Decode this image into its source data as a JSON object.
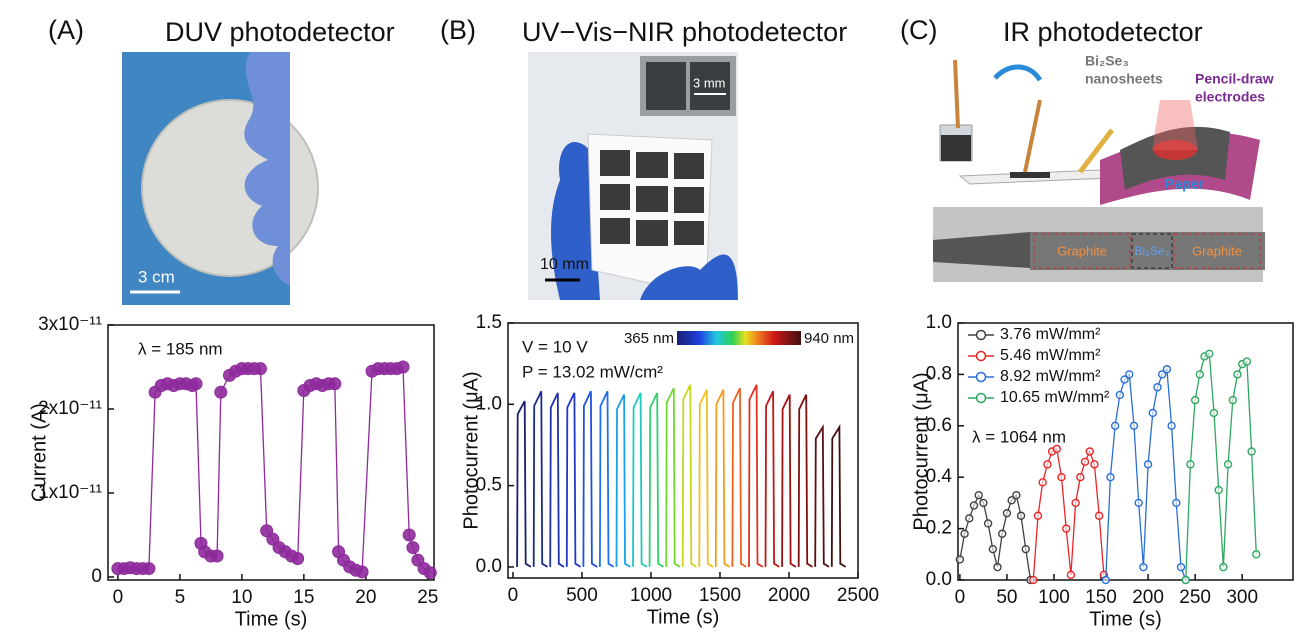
{
  "panels": [
    {
      "label": "(A)",
      "title": "DUV photodetector",
      "photo_texts": [
        "3 cm"
      ]
    },
    {
      "label": "(B)",
      "title": "UV−Vis−NIR photodetector",
      "photo_texts": [
        "10 mm",
        "3 mm"
      ]
    },
    {
      "label": "(C)",
      "title": "IR photodetector",
      "photo_texts": [
        "Bi₂Se₃",
        "nanosheets",
        "Pencil-draw",
        "electrodes",
        "Paper",
        "Graphite",
        "Bi₂Se₃",
        "Graphite"
      ]
    }
  ],
  "chart_data": [
    {
      "type": "line",
      "marker": "filled",
      "x_label": "Time (s)",
      "y_label": "Current (A)",
      "annotations": [
        "λ = 185 nm"
      ],
      "xlim": [
        -0.8,
        25.5
      ],
      "xticks": [
        0,
        5,
        10,
        15,
        20,
        25
      ],
      "ylim": [
        -3.6e-13,
        3e-11
      ],
      "yticks": [
        0,
        {
          "value": 1e-11,
          "label": "1x10⁻¹¹"
        },
        {
          "value": 2e-11,
          "label": "2x10⁻¹¹"
        },
        {
          "value": 3e-11,
          "label": "3x10⁻¹¹"
        }
      ],
      "x": [
        0,
        0.5,
        1,
        1.5,
        2,
        2.5,
        3,
        3.5,
        4,
        4.5,
        5,
        5.5,
        6,
        6.3,
        6.7,
        7,
        7.5,
        8,
        8.3,
        9,
        9.5,
        10,
        10.5,
        11,
        11.5,
        12,
        12.5,
        13,
        13.5,
        14,
        14.5,
        15,
        15.5,
        16,
        16.5,
        17,
        17.5,
        17.8,
        18.2,
        18.7,
        19.2,
        19.7,
        20.5,
        21,
        21.5,
        22,
        22.5,
        23,
        23.5,
        23.8,
        24.2,
        24.7,
        25.2
      ],
      "series": [
        {
          "color": "#8e2a9c",
          "values": [
            1e-12,
            1e-12,
            1.1e-12,
            1e-12,
            1e-12,
            1e-12,
            2.2e-11,
            2.28e-11,
            2.3e-11,
            2.28e-11,
            2.3e-11,
            2.3e-11,
            2.28e-11,
            2.3e-11,
            4e-12,
            3e-12,
            2.5e-12,
            2.5e-12,
            2.2e-11,
            2.4e-11,
            2.45e-11,
            2.48e-11,
            2.48e-11,
            2.48e-11,
            2.48e-11,
            5.5e-12,
            4.5e-12,
            3.5e-12,
            3e-12,
            2.5e-12,
            2.2e-12,
            2.22e-11,
            2.28e-11,
            2.3e-11,
            2.28e-11,
            2.3e-11,
            2.3e-11,
            3e-12,
            2e-12,
            1.2e-12,
            8e-13,
            6e-13,
            2.45e-11,
            2.48e-11,
            2.48e-11,
            2.48e-11,
            2.48e-11,
            2.5e-11,
            5e-12,
            3.5e-12,
            2e-12,
            1e-12,
            5e-13
          ]
        }
      ]
    },
    {
      "type": "line",
      "marker": "none",
      "x_label": "Time (s)",
      "y_label": "Photocurrent (μA)",
      "annotations": [
        "V = 10 V",
        "P = 13.02 mW/cm²"
      ],
      "colorbar_labels": [
        "365 nm",
        "940 nm"
      ],
      "xlim": [
        -36,
        2500
      ],
      "xticks": [
        0,
        500,
        1000,
        1500,
        2000,
        2500
      ],
      "ylim": [
        -0.068,
        1.5
      ],
      "yticks": [
        {
          "value": 0,
          "label": "0.0"
        },
        0.5,
        {
          "value": 1,
          "label": "1.0"
        },
        1.5
      ],
      "series": [
        {
          "color": "#1a1f6e",
          "x": [
            30,
            34,
            85,
            92,
            130
          ],
          "values": [
            0,
            0.94,
            1.02,
            0.02,
            0
          ]
        },
        {
          "color": "#1c2a8c",
          "x": [
            150,
            154,
            205,
            212,
            250
          ],
          "values": [
            0,
            0.99,
            1.08,
            0.02,
            0
          ]
        },
        {
          "color": "#1e2fb0",
          "x": [
            270,
            274,
            325,
            332,
            370
          ],
          "values": [
            0,
            0.98,
            1.07,
            0.02,
            0
          ]
        },
        {
          "color": "#2238c8",
          "x": [
            390,
            394,
            445,
            452,
            490
          ],
          "values": [
            0,
            0.98,
            1.07,
            0.02,
            0
          ]
        },
        {
          "color": "#2050e0",
          "x": [
            510,
            514,
            565,
            572,
            610
          ],
          "values": [
            0,
            0.99,
            1.08,
            0.02,
            0
          ]
        },
        {
          "color": "#1f70f0",
          "x": [
            630,
            634,
            685,
            692,
            730
          ],
          "values": [
            0,
            0.99,
            1.08,
            0.02,
            0
          ]
        },
        {
          "color": "#1aa0e8",
          "x": [
            750,
            754,
            805,
            812,
            850
          ],
          "values": [
            0,
            0.97,
            1.06,
            0.02,
            0
          ]
        },
        {
          "color": "#20c8c0",
          "x": [
            870,
            874,
            925,
            932,
            970
          ],
          "values": [
            0,
            0.98,
            1.07,
            0.02,
            0
          ]
        },
        {
          "color": "#30d070",
          "x": [
            990,
            994,
            1045,
            1052,
            1090
          ],
          "values": [
            0,
            0.98,
            1.07,
            0.02,
            0
          ]
        },
        {
          "color": "#70d830",
          "x": [
            1110,
            1114,
            1165,
            1172,
            1210
          ],
          "values": [
            0,
            1.01,
            1.1,
            0.02,
            0
          ]
        },
        {
          "color": "#c8d820",
          "x": [
            1230,
            1234,
            1285,
            1292,
            1330
          ],
          "values": [
            0,
            1.03,
            1.12,
            0.02,
            0
          ]
        },
        {
          "color": "#f0c020",
          "x": [
            1350,
            1354,
            1405,
            1412,
            1450
          ],
          "values": [
            0,
            1.0,
            1.09,
            0.02,
            0
          ]
        },
        {
          "color": "#f59a20",
          "x": [
            1470,
            1474,
            1525,
            1532,
            1570
          ],
          "values": [
            0,
            1.0,
            1.09,
            0.02,
            0
          ]
        },
        {
          "color": "#f06020",
          "x": [
            1590,
            1594,
            1645,
            1652,
            1690
          ],
          "values": [
            0,
            1.01,
            1.1,
            0.02,
            0
          ]
        },
        {
          "color": "#e03020",
          "x": [
            1710,
            1714,
            1765,
            1772,
            1810
          ],
          "values": [
            0,
            1.03,
            1.12,
            0.02,
            0
          ]
        },
        {
          "color": "#c01818",
          "x": [
            1830,
            1834,
            1885,
            1892,
            1930
          ],
          "values": [
            0,
            0.99,
            1.08,
            0.02,
            0
          ]
        },
        {
          "color": "#a01010",
          "x": [
            1950,
            1954,
            2005,
            2012,
            2050
          ],
          "values": [
            0,
            0.97,
            1.06,
            0.02,
            0
          ]
        },
        {
          "color": "#801010",
          "x": [
            2070,
            2074,
            2125,
            2132,
            2170
          ],
          "values": [
            0,
            0.97,
            1.06,
            0.02,
            0
          ]
        },
        {
          "color": "#5a1010",
          "x": [
            2190,
            2194,
            2245,
            2252,
            2290
          ],
          "values": [
            0,
            0.79,
            0.86,
            0.02,
            0
          ]
        },
        {
          "color": "#401010",
          "x": [
            2310,
            2314,
            2365,
            2372,
            2410
          ],
          "values": [
            0,
            0.79,
            0.86,
            0.02,
            0
          ]
        }
      ]
    },
    {
      "type": "line",
      "marker": "open",
      "legend": "top-left",
      "x_label": "Time (s)",
      "y_label": "Photocurrent (μA)",
      "annotations": [
        "λ = 1064 nm"
      ],
      "xlim": [
        -2,
        354
      ],
      "xticks": [
        0,
        50,
        100,
        150,
        200,
        250,
        300
      ],
      "ylim": [
        0,
        1
      ],
      "yticks": [
        {
          "value": 0,
          "label": "0.0"
        },
        0.2,
        0.4,
        0.6,
        0.8,
        {
          "value": 1,
          "label": "1.0"
        }
      ],
      "series": [
        {
          "name": "3.76  mW/mm²",
          "color": "#404040",
          "x": [
            0,
            5,
            10,
            15,
            20,
            25,
            30,
            35,
            40,
            45,
            50,
            55,
            60,
            65,
            70,
            75
          ],
          "values": [
            0.08,
            0.18,
            0.24,
            0.29,
            0.33,
            0.3,
            0.22,
            0.12,
            0.05,
            0.18,
            0.26,
            0.31,
            0.33,
            0.25,
            0.12,
            0
          ]
        },
        {
          "name": "5.46  mW/mm²",
          "color": "#e8262a",
          "x": [
            78,
            83,
            88,
            93,
            98,
            103,
            108,
            113,
            118,
            123,
            128,
            133,
            138,
            143,
            148,
            153
          ],
          "values": [
            0,
            0.25,
            0.38,
            0.45,
            0.5,
            0.51,
            0.4,
            0.2,
            0.02,
            0.3,
            0.4,
            0.46,
            0.5,
            0.45,
            0.25,
            0.02
          ]
        },
        {
          "name": "8.92  mW/mm²",
          "color": "#2a6fd6",
          "x": [
            155,
            160,
            165,
            170,
            175,
            180,
            185,
            190,
            195,
            200,
            205,
            210,
            215,
            220,
            225,
            230,
            235,
            240
          ],
          "values": [
            0,
            0.4,
            0.6,
            0.72,
            0.78,
            0.8,
            0.6,
            0.3,
            0.05,
            0.45,
            0.65,
            0.75,
            0.8,
            0.82,
            0.6,
            0.3,
            0.05,
            0
          ]
        },
        {
          "name": "10.65 mW/mm²",
          "color": "#2ea860",
          "x": [
            240,
            245,
            250,
            255,
            260,
            265,
            270,
            275,
            280,
            285,
            290,
            295,
            300,
            305,
            310,
            315
          ],
          "values": [
            0,
            0.45,
            0.7,
            0.8,
            0.87,
            0.88,
            0.65,
            0.35,
            0.05,
            0.45,
            0.7,
            0.8,
            0.84,
            0.85,
            0.5,
            0.1
          ]
        }
      ]
    }
  ]
}
